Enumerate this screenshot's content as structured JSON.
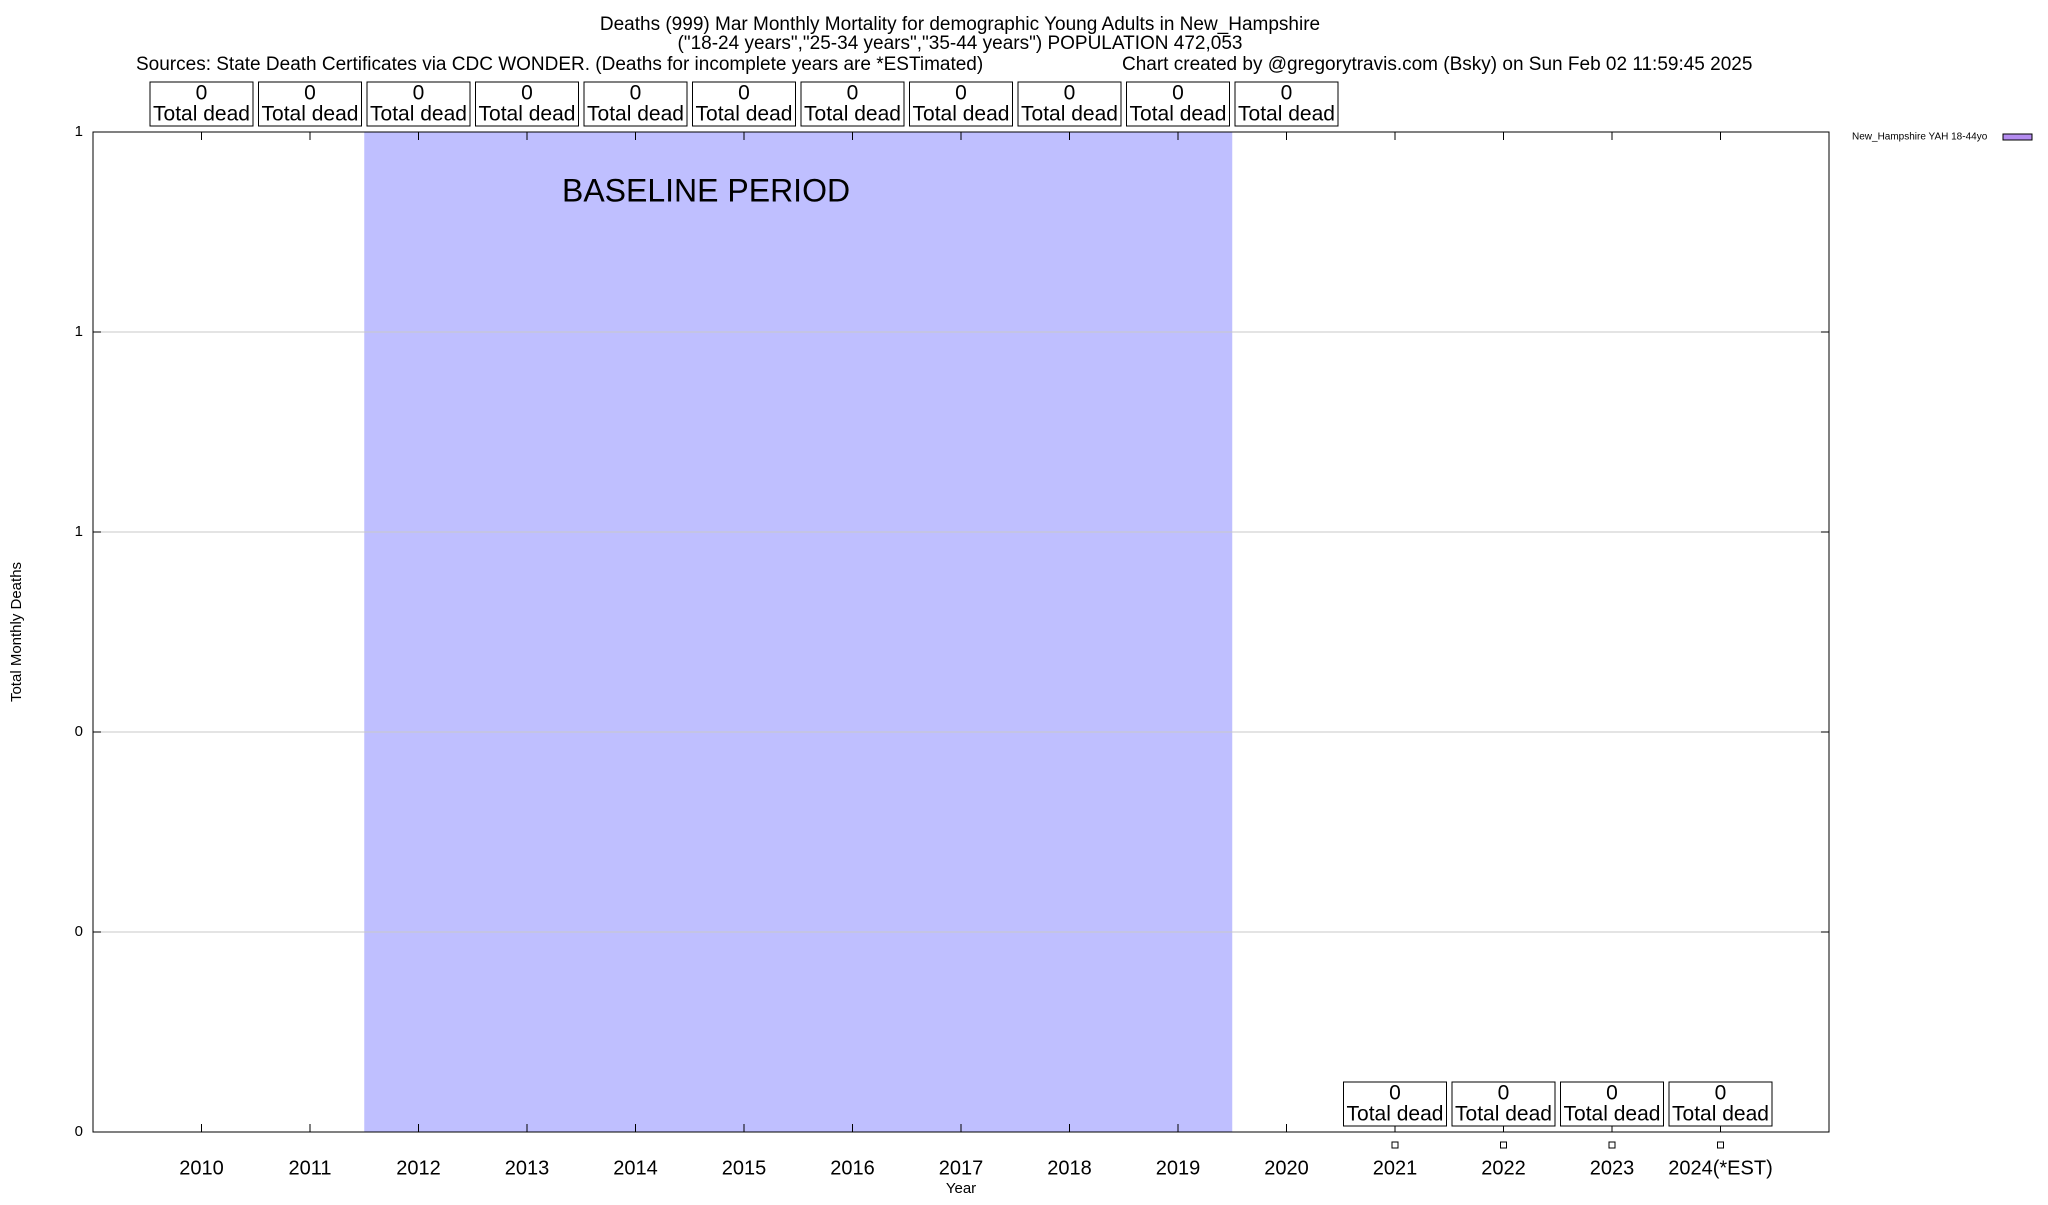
{
  "chart_data": {
    "type": "scatter",
    "title": "Deaths (999) Mar Monthly Mortality for demographic Young Adults in New_Hampshire",
    "subtitle": "(\"18-24 years\",\"25-34 years\",\"35-44 years\") POPULATION 472,053",
    "sources": "Sources: State Death Certificates via CDC WONDER. (Deaths for incomplete years are *ESTimated)",
    "credit": "Chart created by @gregorytravis.com (Bsky) on Sun Feb 02 11:59:45 2025",
    "x_label": "Year",
    "y_label": "Total Monthly Deaths",
    "categories": [
      "2010",
      "2011",
      "2012",
      "2013",
      "2014",
      "2015",
      "2016",
      "2017",
      "2018",
      "2019",
      "2020",
      "2021",
      "2022",
      "2023",
      "2024(*EST)"
    ],
    "series": [
      {
        "name": "New_Hampshire YAH 18-44yo",
        "color": "#b48cf0",
        "values": [
          null,
          null,
          null,
          null,
          null,
          null,
          null,
          null,
          null,
          null,
          null,
          0,
          0,
          0,
          0
        ]
      }
    ],
    "year_totals": [
      0,
      0,
      0,
      0,
      0,
      0,
      0,
      0,
      0,
      0,
      0,
      0,
      0,
      0,
      0
    ],
    "total_label": "Total dead",
    "baseline": {
      "label": "BASELINE PERIOD",
      "from": "2012",
      "to": "2019",
      "color": "#bfbfff"
    },
    "ylim": [
      0,
      1
    ],
    "yticks": [
      {
        "value": 0,
        "label": "0"
      },
      {
        "value": 0.2,
        "label": "0"
      },
      {
        "value": 0.4,
        "label": "0"
      },
      {
        "value": 0.6,
        "label": "1"
      },
      {
        "value": 0.8,
        "label": "1"
      },
      {
        "value": 1,
        "label": "1"
      }
    ],
    "grid": true,
    "legend": "top-right-outside"
  }
}
